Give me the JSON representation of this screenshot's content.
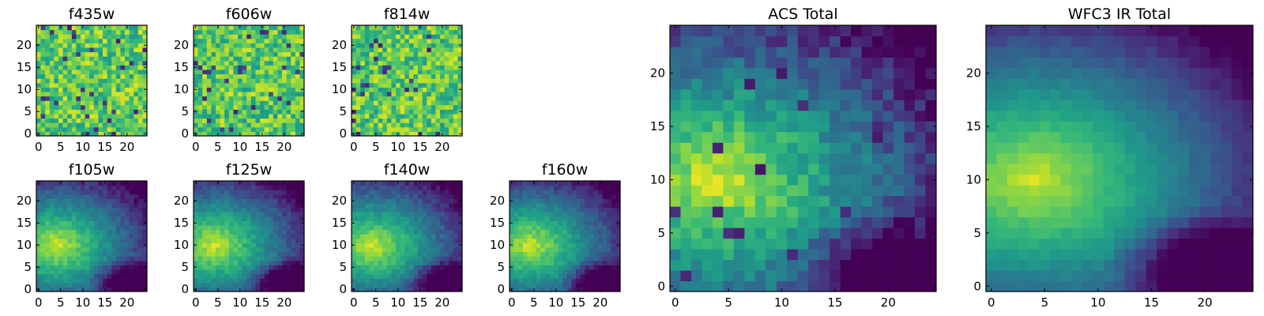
{
  "chart_data": [
    {
      "type": "heatmap",
      "title": "f435w",
      "xlim": [
        0,
        24
      ],
      "ylim": [
        0,
        24
      ],
      "xticks": [
        "0",
        "5",
        "10",
        "15",
        "20"
      ],
      "yticks": [
        "0",
        "5",
        "10",
        "15",
        "20"
      ],
      "xlabel": "",
      "ylabel": "",
      "colormap": "viridis",
      "pattern": "noise",
      "seed": 11
    },
    {
      "type": "heatmap",
      "title": "f606w",
      "xlim": [
        0,
        24
      ],
      "ylim": [
        0,
        24
      ],
      "xticks": [
        "0",
        "5",
        "10",
        "15",
        "20"
      ],
      "yticks": [
        "0",
        "5",
        "10",
        "15",
        "20"
      ],
      "xlabel": "",
      "ylabel": "",
      "colormap": "viridis",
      "pattern": "noise",
      "seed": 23
    },
    {
      "type": "heatmap",
      "title": "f814w",
      "xlim": [
        0,
        24
      ],
      "ylim": [
        0,
        24
      ],
      "xticks": [
        "0",
        "5",
        "10",
        "15",
        "20"
      ],
      "yticks": [
        "0",
        "5",
        "10",
        "15",
        "20"
      ],
      "xlabel": "",
      "ylabel": "",
      "colormap": "viridis",
      "pattern": "noise",
      "seed": 37
    },
    {
      "type": "heatmap",
      "title": "f105w",
      "xlim": [
        0,
        24
      ],
      "ylim": [
        0,
        24
      ],
      "xticks": [
        "0",
        "5",
        "10",
        "15",
        "20"
      ],
      "yticks": [
        "0",
        "5",
        "10",
        "15",
        "20"
      ],
      "xlabel": "",
      "ylabel": "",
      "colormap": "viridis",
      "pattern": "galaxy",
      "seed": 41
    },
    {
      "type": "heatmap",
      "title": "f125w",
      "xlim": [
        0,
        24
      ],
      "ylim": [
        0,
        24
      ],
      "xticks": [
        "0",
        "5",
        "10",
        "15",
        "20"
      ],
      "yticks": [
        "0",
        "5",
        "10",
        "15",
        "20"
      ],
      "xlabel": "",
      "ylabel": "",
      "colormap": "viridis",
      "pattern": "galaxy",
      "seed": 53
    },
    {
      "type": "heatmap",
      "title": "f140w",
      "xlim": [
        0,
        24
      ],
      "ylim": [
        0,
        24
      ],
      "xticks": [
        "0",
        "5",
        "10",
        "15",
        "20"
      ],
      "yticks": [
        "0",
        "5",
        "10",
        "15",
        "20"
      ],
      "xlabel": "",
      "ylabel": "",
      "colormap": "viridis",
      "pattern": "galaxy",
      "seed": 67
    },
    {
      "type": "heatmap",
      "title": "f160w",
      "xlim": [
        0,
        24
      ],
      "ylim": [
        0,
        24
      ],
      "xticks": [
        "0",
        "5",
        "10",
        "15",
        "20"
      ],
      "yticks": [
        "0",
        "5",
        "10",
        "15",
        "20"
      ],
      "xlabel": "",
      "ylabel": "",
      "colormap": "viridis",
      "pattern": "galaxy",
      "seed": 79
    },
    {
      "type": "heatmap",
      "title": "ACS Total",
      "xlim": [
        0,
        24
      ],
      "ylim": [
        0,
        24
      ],
      "xticks": [
        "0",
        "5",
        "10",
        "15",
        "20"
      ],
      "yticks": [
        "0",
        "5",
        "10",
        "15",
        "20"
      ],
      "xlabel": "",
      "ylabel": "",
      "colormap": "viridis",
      "pattern": "acs",
      "seed": 89
    },
    {
      "type": "heatmap",
      "title": "WFC3 IR Total",
      "xlim": [
        0,
        24
      ],
      "ylim": [
        0,
        24
      ],
      "xticks": [
        "0",
        "5",
        "10",
        "15",
        "20"
      ],
      "yticks": [
        "0",
        "5",
        "10",
        "15",
        "20"
      ],
      "xlabel": "",
      "ylabel": "",
      "colormap": "viridis",
      "pattern": "ir",
      "seed": 97
    }
  ]
}
